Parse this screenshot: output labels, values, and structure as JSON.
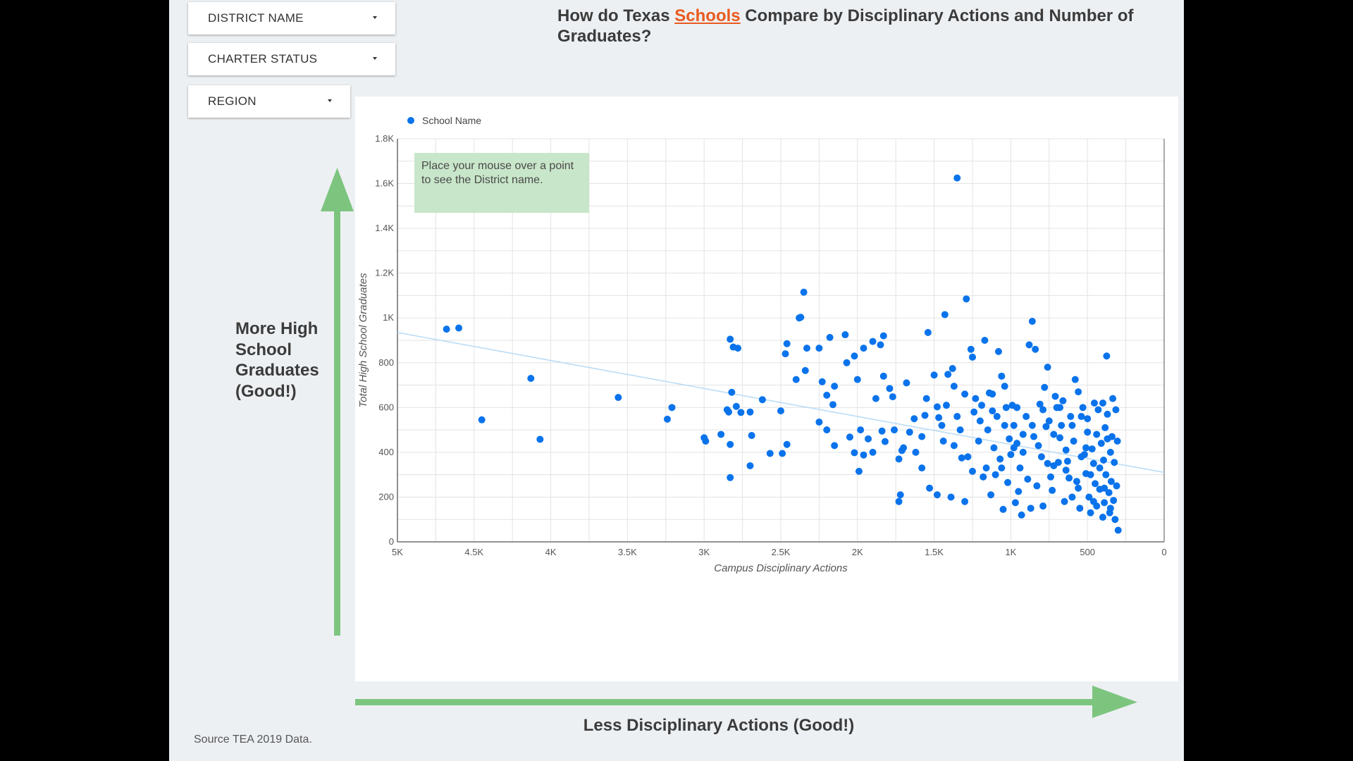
{
  "filters": {
    "district_name": "DISTRICT NAME",
    "charter_status": "CHARTER STATUS",
    "region": "REGION"
  },
  "title": {
    "before": "How do Texas ",
    "link": "Schools",
    "after": " Compare by Disciplinary Actions and Number of Graduates?"
  },
  "annotations": {
    "y_arrow_label": "More High School Graduates (Good!)",
    "x_arrow_label": "Less Disciplinary Actions (Good!)",
    "hover_hint": "Place your mouse over a point to see the District name.",
    "source": "Source TEA 2019 Data."
  },
  "colors": {
    "background": "#edf0f3",
    "point": "#0a73eb",
    "trendline": "#bcdcf5",
    "arrow": "#7dc57f",
    "link": "#ea5a1e"
  },
  "chart_data": {
    "type": "scatter",
    "xlabel": "Campus Disciplinary Actions",
    "ylabel": "Total High School Graduates",
    "xlim": [
      5000,
      0
    ],
    "ylim": [
      0,
      1800
    ],
    "x_ticks": [
      5000,
      4500,
      4000,
      3500,
      3000,
      2500,
      2000,
      1500,
      1000,
      500,
      0
    ],
    "x_tick_labels": [
      "5K",
      "4.5K",
      "4K",
      "3.5K",
      "3K",
      "2.5K",
      "2K",
      "1.5K",
      "1K",
      "500",
      "0"
    ],
    "y_ticks": [
      0,
      200,
      400,
      600,
      800,
      1000,
      1200,
      1400,
      1600,
      1800
    ],
    "y_tick_labels": [
      "0",
      "200",
      "400",
      "600",
      "800",
      "1K",
      "1.2K",
      "1.4K",
      "1.6K",
      "1.8K"
    ],
    "grid": true,
    "legend": "top-left",
    "series": [
      {
        "name": "School Name",
        "points": [
          [
            4680,
            950
          ],
          [
            4600,
            955
          ],
          [
            4450,
            545
          ],
          [
            4130,
            730
          ],
          [
            4070,
            458
          ],
          [
            3560,
            645
          ],
          [
            3240,
            548
          ],
          [
            3210,
            600
          ],
          [
            3000,
            465
          ],
          [
            2990,
            450
          ],
          [
            2890,
            480
          ],
          [
            2830,
            905
          ],
          [
            2810,
            870
          ],
          [
            2780,
            865
          ],
          [
            2820,
            668
          ],
          [
            2850,
            590
          ],
          [
            2840,
            580
          ],
          [
            2790,
            605
          ],
          [
            2760,
            578
          ],
          [
            2700,
            580
          ],
          [
            2690,
            475
          ],
          [
            2830,
            435
          ],
          [
            2830,
            287
          ],
          [
            2700,
            340
          ],
          [
            2620,
            635
          ],
          [
            2570,
            395
          ],
          [
            2490,
            395
          ],
          [
            2500,
            585
          ],
          [
            2460,
            435
          ],
          [
            2470,
            840
          ],
          [
            2460,
            885
          ],
          [
            2380,
            1000
          ],
          [
            2370,
            1003
          ],
          [
            2350,
            1115
          ],
          [
            2400,
            725
          ],
          [
            2340,
            765
          ],
          [
            2330,
            865
          ],
          [
            2250,
            865
          ],
          [
            2230,
            715
          ],
          [
            2200,
            655
          ],
          [
            2180,
            913
          ],
          [
            2150,
            695
          ],
          [
            2080,
            925
          ],
          [
            2020,
            830
          ],
          [
            2000,
            725
          ],
          [
            1960,
            865
          ],
          [
            1900,
            895
          ],
          [
            1830,
            920
          ],
          [
            1830,
            740
          ],
          [
            1850,
            880
          ],
          [
            2070,
            800
          ],
          [
            2160,
            613
          ],
          [
            2200,
            500
          ],
          [
            2250,
            535
          ],
          [
            2150,
            430
          ],
          [
            2050,
            468
          ],
          [
            2020,
            398
          ],
          [
            1980,
            500
          ],
          [
            1990,
            315
          ],
          [
            1960,
            388
          ],
          [
            1930,
            460
          ],
          [
            1900,
            400
          ],
          [
            1880,
            640
          ],
          [
            1840,
            495
          ],
          [
            1820,
            448
          ],
          [
            1790,
            685
          ],
          [
            1770,
            648
          ],
          [
            1760,
            500
          ],
          [
            1730,
            370
          ],
          [
            1710,
            408
          ],
          [
            1720,
            210
          ],
          [
            1730,
            180
          ],
          [
            1680,
            710
          ],
          [
            1700,
            420
          ],
          [
            1660,
            490
          ],
          [
            1620,
            400
          ],
          [
            1630,
            550
          ],
          [
            1580,
            470
          ],
          [
            1560,
            565
          ],
          [
            1550,
            640
          ],
          [
            1540,
            935
          ],
          [
            1500,
            745
          ],
          [
            1480,
            603
          ],
          [
            1470,
            555
          ],
          [
            1450,
            520
          ],
          [
            1430,
            1015
          ],
          [
            1410,
            748
          ],
          [
            1380,
            774
          ],
          [
            1370,
            695
          ],
          [
            1350,
            1625
          ],
          [
            1320,
            375
          ],
          [
            1300,
            660
          ],
          [
            1290,
            1085
          ],
          [
            1260,
            860
          ],
          [
            1250,
            825
          ],
          [
            1230,
            640
          ],
          [
            1200,
            540
          ],
          [
            1170,
            900
          ],
          [
            1140,
            665
          ],
          [
            1120,
            585
          ],
          [
            1080,
            850
          ],
          [
            1100,
            300
          ],
          [
            1060,
            740
          ],
          [
            1040,
            695
          ],
          [
            1040,
            520
          ],
          [
            1010,
            460
          ],
          [
            980,
            520
          ],
          [
            960,
            440
          ],
          [
            950,
            225
          ],
          [
            920,
            400
          ],
          [
            880,
            880
          ],
          [
            860,
            985
          ],
          [
            840,
            860
          ],
          [
            810,
            615
          ],
          [
            780,
            690
          ],
          [
            760,
            780
          ],
          [
            750,
            540
          ],
          [
            720,
            340
          ],
          [
            700,
            600
          ],
          [
            680,
            465
          ],
          [
            660,
            630
          ],
          [
            640,
            410
          ],
          [
            620,
            285
          ],
          [
            600,
            200
          ],
          [
            580,
            725
          ],
          [
            560,
            670
          ],
          [
            540,
            560
          ],
          [
            520,
            390
          ],
          [
            510,
            305
          ],
          [
            500,
            490
          ],
          [
            490,
            200
          ],
          [
            480,
            130
          ],
          [
            470,
            415
          ],
          [
            460,
            350
          ],
          [
            455,
            620
          ],
          [
            450,
            260
          ],
          [
            440,
            160
          ],
          [
            430,
            590
          ],
          [
            420,
            235
          ],
          [
            410,
            440
          ],
          [
            400,
            110
          ],
          [
            395,
            365
          ],
          [
            390,
            175
          ],
          [
            385,
            510
          ],
          [
            380,
            300
          ],
          [
            375,
            830
          ],
          [
            370,
            570
          ],
          [
            360,
            220
          ],
          [
            355,
            130
          ],
          [
            350,
            400
          ],
          [
            345,
            270
          ],
          [
            340,
            470
          ],
          [
            335,
            640
          ],
          [
            330,
            185
          ],
          [
            325,
            355
          ],
          [
            320,
            100
          ],
          [
            315,
            590
          ],
          [
            310,
            250
          ],
          [
            305,
            450
          ],
          [
            300,
            52
          ],
          [
            1580,
            330
          ],
          [
            1530,
            240
          ],
          [
            1480,
            210
          ],
          [
            1440,
            450
          ],
          [
            1390,
            200
          ],
          [
            1350,
            560
          ],
          [
            1300,
            180
          ],
          [
            1250,
            315
          ],
          [
            1210,
            450
          ],
          [
            1160,
            330
          ],
          [
            1130,
            210
          ],
          [
            1110,
            420
          ],
          [
            1070,
            370
          ],
          [
            1050,
            145
          ],
          [
            1020,
            265
          ],
          [
            990,
            610
          ],
          [
            970,
            175
          ],
          [
            940,
            330
          ],
          [
            930,
            120
          ],
          [
            900,
            560
          ],
          [
            890,
            280
          ],
          [
            870,
            150
          ],
          [
            850,
            470
          ],
          [
            830,
            250
          ],
          [
            800,
            380
          ],
          [
            790,
            160
          ],
          [
            770,
            515
          ],
          [
            740,
            290
          ],
          [
            730,
            230
          ],
          [
            710,
            650
          ],
          [
            690,
            355
          ],
          [
            670,
            520
          ],
          [
            650,
            180
          ],
          [
            630,
            360
          ],
          [
            610,
            560
          ],
          [
            590,
            450
          ],
          [
            570,
            270
          ],
          [
            550,
            150
          ],
          [
            530,
            600
          ],
          [
            510,
            420
          ],
          [
            1190,
            610
          ],
          [
            1150,
            500
          ],
          [
            1090,
            560
          ],
          [
            1000,
            390
          ],
          [
            960,
            600
          ],
          [
            920,
            480
          ],
          [
            860,
            520
          ],
          [
            820,
            430
          ],
          [
            790,
            590
          ],
          [
            760,
            350
          ],
          [
            720,
            480
          ],
          [
            680,
            600
          ],
          [
            640,
            320
          ],
          [
            600,
            520
          ],
          [
            560,
            240
          ],
          [
            540,
            380
          ],
          [
            500,
            550
          ],
          [
            480,
            300
          ],
          [
            460,
            180
          ],
          [
            440,
            480
          ],
          [
            420,
            330
          ],
          [
            400,
            620
          ],
          [
            390,
            240
          ],
          [
            370,
            460
          ],
          [
            350,
            150
          ],
          [
            1420,
            610
          ],
          [
            1370,
            430
          ],
          [
            1330,
            500
          ],
          [
            1280,
            380
          ],
          [
            1240,
            580
          ],
          [
            1180,
            290
          ],
          [
            1120,
            660
          ],
          [
            1060,
            330
          ],
          [
            1030,
            600
          ],
          [
            980,
            420
          ]
        ]
      }
    ],
    "trendline": [
      [
        5000,
        935
      ],
      [
        0,
        310
      ]
    ]
  }
}
